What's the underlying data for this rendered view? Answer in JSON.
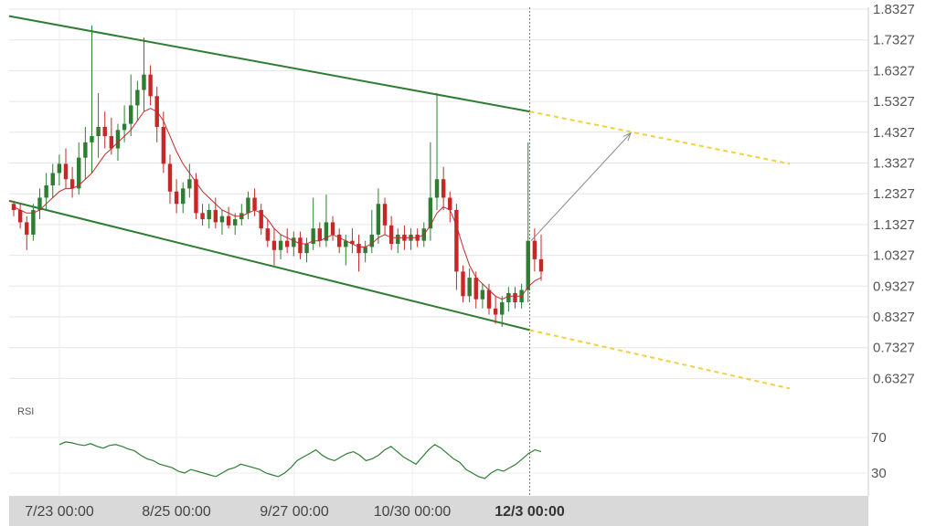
{
  "chart_data": {
    "type": "candlestick",
    "price_axis": {
      "ticks": [
        "1.8327",
        "1.7327",
        "1.6327",
        "1.5327",
        "1.4327",
        "1.3327",
        "1.2327",
        "1.1327",
        "1.0327",
        "0.9327",
        "0.8327",
        "0.7327",
        "0.6327"
      ],
      "range": [
        0.5827,
        1.8327
      ]
    },
    "x_axis": {
      "ticks": [
        "7/23 00:00",
        "8/25 00:00",
        "9/27 00:00",
        "10/30 00:00"
      ],
      "current_label": "12/3 00:00"
    },
    "candles": [
      [
        1.2,
        1.21,
        1.16,
        1.18
      ],
      [
        1.18,
        1.2,
        1.12,
        1.14
      ],
      [
        1.14,
        1.16,
        1.05,
        1.1
      ],
      [
        1.1,
        1.2,
        1.08,
        1.18
      ],
      [
        1.18,
        1.25,
        1.15,
        1.22
      ],
      [
        1.22,
        1.3,
        1.18,
        1.26
      ],
      [
        1.26,
        1.33,
        1.22,
        1.3
      ],
      [
        1.3,
        1.36,
        1.26,
        1.33
      ],
      [
        1.33,
        1.38,
        1.25,
        1.28
      ],
      [
        1.28,
        1.32,
        1.22,
        1.25
      ],
      [
        1.25,
        1.4,
        1.23,
        1.35
      ],
      [
        1.35,
        1.45,
        1.28,
        1.4
      ],
      [
        1.4,
        1.78,
        1.3,
        1.42
      ],
      [
        1.42,
        1.56,
        1.35,
        1.45
      ],
      [
        1.45,
        1.5,
        1.38,
        1.42
      ],
      [
        1.42,
        1.48,
        1.36,
        1.38
      ],
      [
        1.38,
        1.46,
        1.34,
        1.44
      ],
      [
        1.44,
        1.52,
        1.4,
        1.46
      ],
      [
        1.46,
        1.62,
        1.42,
        1.52
      ],
      [
        1.52,
        1.6,
        1.47,
        1.57
      ],
      [
        1.57,
        1.74,
        1.5,
        1.62
      ],
      [
        1.62,
        1.65,
        1.52,
        1.55
      ],
      [
        1.55,
        1.58,
        1.4,
        1.45
      ],
      [
        1.45,
        1.5,
        1.3,
        1.33
      ],
      [
        1.33,
        1.36,
        1.2,
        1.24
      ],
      [
        1.24,
        1.28,
        1.17,
        1.2
      ],
      [
        1.2,
        1.27,
        1.17,
        1.25
      ],
      [
        1.25,
        1.33,
        1.22,
        1.28
      ],
      [
        1.28,
        1.3,
        1.15,
        1.17
      ],
      [
        1.17,
        1.2,
        1.13,
        1.15
      ],
      [
        1.15,
        1.2,
        1.12,
        1.18
      ],
      [
        1.18,
        1.22,
        1.12,
        1.14
      ],
      [
        1.14,
        1.18,
        1.1,
        1.16
      ],
      [
        1.16,
        1.19,
        1.12,
        1.13
      ],
      [
        1.13,
        1.17,
        1.1,
        1.15
      ],
      [
        1.15,
        1.2,
        1.13,
        1.17
      ],
      [
        1.17,
        1.24,
        1.15,
        1.22
      ],
      [
        1.22,
        1.25,
        1.16,
        1.18
      ],
      [
        1.18,
        1.2,
        1.1,
        1.12
      ],
      [
        1.12,
        1.15,
        1.06,
        1.08
      ],
      [
        1.08,
        1.12,
        1.0,
        1.05
      ],
      [
        1.05,
        1.1,
        1.02,
        1.08
      ],
      [
        1.08,
        1.12,
        1.04,
        1.06
      ],
      [
        1.06,
        1.11,
        1.03,
        1.09
      ],
      [
        1.09,
        1.11,
        1.02,
        1.04
      ],
      [
        1.04,
        1.09,
        1.01,
        1.07
      ],
      [
        1.07,
        1.22,
        1.05,
        1.12
      ],
      [
        1.12,
        1.14,
        1.06,
        1.08
      ],
      [
        1.08,
        1.23,
        1.06,
        1.14
      ],
      [
        1.14,
        1.16,
        1.08,
        1.1
      ],
      [
        1.1,
        1.12,
        1.04,
        1.06
      ],
      [
        1.06,
        1.1,
        1.0,
        1.08
      ],
      [
        1.08,
        1.12,
        1.04,
        1.07
      ],
      [
        1.07,
        1.1,
        0.98,
        1.04
      ],
      [
        1.04,
        1.08,
        1.01,
        1.06
      ],
      [
        1.06,
        1.18,
        1.04,
        1.1
      ],
      [
        1.1,
        1.25,
        1.07,
        1.2
      ],
      [
        1.2,
        1.22,
        1.1,
        1.13
      ],
      [
        1.13,
        1.16,
        1.05,
        1.07
      ],
      [
        1.07,
        1.12,
        1.04,
        1.1
      ],
      [
        1.1,
        1.13,
        1.05,
        1.08
      ],
      [
        1.08,
        1.12,
        1.05,
        1.1
      ],
      [
        1.1,
        1.12,
        1.06,
        1.08
      ],
      [
        1.08,
        1.14,
        1.06,
        1.12
      ],
      [
        1.12,
        1.4,
        1.08,
        1.22
      ],
      [
        1.22,
        1.56,
        1.18,
        1.28
      ],
      [
        1.28,
        1.32,
        1.18,
        1.22
      ],
      [
        1.22,
        1.24,
        1.14,
        1.18
      ],
      [
        1.18,
        1.2,
        0.92,
        0.98
      ],
      [
        0.98,
        1.0,
        0.88,
        0.9
      ],
      [
        0.9,
        0.99,
        0.88,
        0.96
      ],
      [
        0.96,
        0.98,
        0.86,
        0.89
      ],
      [
        0.89,
        0.94,
        0.86,
        0.92
      ],
      [
        0.92,
        0.94,
        0.84,
        0.86
      ],
      [
        0.86,
        0.9,
        0.81,
        0.84
      ],
      [
        0.84,
        0.9,
        0.8,
        0.88
      ],
      [
        0.88,
        0.93,
        0.85,
        0.91
      ],
      [
        0.91,
        0.93,
        0.86,
        0.88
      ],
      [
        0.88,
        0.94,
        0.86,
        0.92
      ],
      [
        0.92,
        1.4,
        0.88,
        1.08
      ],
      [
        1.08,
        1.12,
        0.98,
        1.02
      ],
      [
        1.02,
        1.1,
        0.95,
        0.98
      ]
    ],
    "ma_line": [
      1.19,
      1.18,
      1.17,
      1.17,
      1.18,
      1.2,
      1.22,
      1.24,
      1.25,
      1.25,
      1.26,
      1.28,
      1.3,
      1.33,
      1.36,
      1.38,
      1.4,
      1.42,
      1.44,
      1.47,
      1.5,
      1.51,
      1.5,
      1.47,
      1.42,
      1.37,
      1.33,
      1.3,
      1.27,
      1.24,
      1.22,
      1.2,
      1.18,
      1.17,
      1.16,
      1.16,
      1.17,
      1.18,
      1.17,
      1.15,
      1.12,
      1.1,
      1.09,
      1.08,
      1.07,
      1.07,
      1.08,
      1.08,
      1.09,
      1.1,
      1.09,
      1.08,
      1.07,
      1.06,
      1.06,
      1.07,
      1.09,
      1.1,
      1.09,
      1.09,
      1.09,
      1.09,
      1.09,
      1.1,
      1.13,
      1.17,
      1.19,
      1.18,
      1.13,
      1.06,
      1.0,
      0.96,
      0.94,
      0.92,
      0.9,
      0.89,
      0.9,
      0.9,
      0.9,
      0.93,
      0.95,
      0.96
    ],
    "channel": {
      "upper": {
        "from": 1.81,
        "to": 1.5
      },
      "lower": {
        "from": 1.21,
        "to": 0.79
      },
      "projection_upper_end": 1.33,
      "projection_lower_end": 0.6
    },
    "projection_arrow": {
      "from": 1.08,
      "to": 1.43
    },
    "indicator": {
      "name": "RSI",
      "ticks": [
        "70",
        "30"
      ],
      "values": [
        62,
        65,
        64,
        62,
        61,
        63,
        60,
        58,
        61,
        62,
        60,
        57,
        55,
        50,
        46,
        44,
        40,
        38,
        36,
        32,
        30,
        34,
        32,
        30,
        28,
        26,
        30,
        34,
        36,
        40,
        38,
        36,
        34,
        30,
        28,
        26,
        30,
        36,
        44,
        48,
        52,
        56,
        50,
        46,
        44,
        48,
        52,
        54,
        50,
        44,
        46,
        50,
        56,
        60,
        54,
        48,
        44,
        40,
        48,
        56,
        62,
        58,
        52,
        46,
        42,
        34,
        30,
        26,
        24,
        30,
        34,
        32,
        36,
        40,
        46,
        52,
        56,
        54
      ]
    },
    "colors": {
      "up": "#2e7d32",
      "down": "#c62828",
      "channel": "#2e7d32",
      "projection": "#f2d13a",
      "ma": "#c62828",
      "rsi": "#2e7d32"
    }
  }
}
